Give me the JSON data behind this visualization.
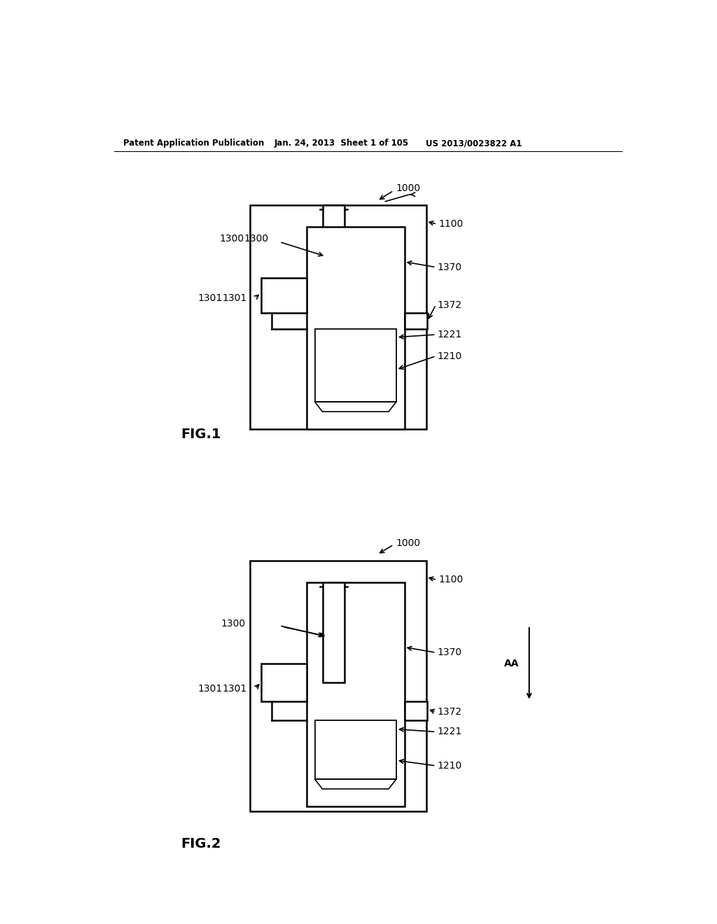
{
  "bg_color": "#ffffff",
  "header_text": "Patent Application Publication",
  "header_date": "Jan. 24, 2013  Sheet 1 of 105",
  "header_patent": "US 2013/0023822 A1",
  "fig1_label": "FIG.1",
  "fig2_label": "FIG.2",
  "label_1000": "1000",
  "label_1100": "1100",
  "label_1300": "1300",
  "label_1301": "1301",
  "label_1370": "1370",
  "label_1372": "1372",
  "label_1221": "1221",
  "label_1210": "1210",
  "label_AA": "AA",
  "line_color": "#000000"
}
